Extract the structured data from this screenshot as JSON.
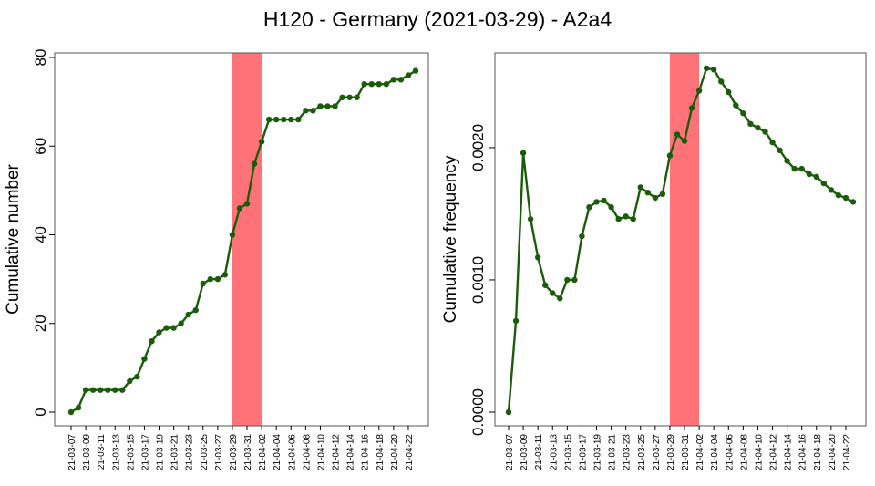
{
  "title": "H120 - Germany (2021-03-29) - A2a4",
  "colors": {
    "line": "#1a5c0a",
    "highlight": "#ff7378",
    "frame": "#555555"
  },
  "chart_data": [
    {
      "type": "line",
      "ylabel": "Cumulative number",
      "ylim": [
        0,
        80
      ],
      "yticks": [
        "0",
        "20",
        "40",
        "60",
        "80"
      ],
      "yticks_values": [
        0,
        20,
        40,
        60,
        80
      ],
      "highlight": {
        "from": "2021-03-29",
        "to": "2021-04-02"
      },
      "xticks": [
        "21-03-07",
        "21-03-09",
        "21-03-11",
        "21-03-13",
        "21-03-15",
        "21-03-17",
        "21-03-19",
        "21-03-21",
        "21-03-23",
        "21-03-25",
        "21-03-27",
        "21-03-29",
        "21-03-31",
        "21-04-02",
        "21-04-04",
        "21-04-06",
        "21-04-08",
        "21-04-10",
        "21-04-12",
        "21-04-14",
        "21-04-16",
        "21-04-18",
        "21-04-20",
        "21-04-22"
      ],
      "x": [
        "2021-03-07",
        "2021-03-08",
        "2021-03-09",
        "2021-03-10",
        "2021-03-11",
        "2021-03-12",
        "2021-03-13",
        "2021-03-14",
        "2021-03-15",
        "2021-03-16",
        "2021-03-17",
        "2021-03-18",
        "2021-03-19",
        "2021-03-20",
        "2021-03-21",
        "2021-03-22",
        "2021-03-23",
        "2021-03-24",
        "2021-03-25",
        "2021-03-26",
        "2021-03-27",
        "2021-03-28",
        "2021-03-29",
        "2021-03-30",
        "2021-03-31",
        "2021-04-01",
        "2021-04-02",
        "2021-04-03",
        "2021-04-04",
        "2021-04-05",
        "2021-04-06",
        "2021-04-07",
        "2021-04-08",
        "2021-04-09",
        "2021-04-10",
        "2021-04-11",
        "2021-04-12",
        "2021-04-13",
        "2021-04-14",
        "2021-04-15",
        "2021-04-16",
        "2021-04-17",
        "2021-04-18",
        "2021-04-19",
        "2021-04-20",
        "2021-04-21",
        "2021-04-22",
        "2021-04-23"
      ],
      "values": [
        0,
        1,
        5,
        5,
        5,
        5,
        5,
        5,
        7,
        8,
        12,
        16,
        18,
        19,
        19,
        20,
        22,
        23,
        29,
        30,
        30,
        31,
        40,
        46,
        47,
        56,
        61,
        66,
        66,
        66,
        66,
        66,
        68,
        68,
        69,
        69,
        69,
        71,
        71,
        71,
        74,
        74,
        74,
        74,
        75,
        75,
        76,
        77
      ]
    },
    {
      "type": "line",
      "ylabel": "Cumulative frequency",
      "ylim": [
        0,
        0.00262
      ],
      "yticks": [
        "0.0000",
        "0.0010",
        "0.0020"
      ],
      "yticks_values": [
        0,
        0.001,
        0.002
      ],
      "highlight": {
        "from": "2021-03-29",
        "to": "2021-04-02"
      },
      "xticks": [
        "21-03-07",
        "21-03-09",
        "21-03-11",
        "21-03-13",
        "21-03-15",
        "21-03-17",
        "21-03-19",
        "21-03-21",
        "21-03-23",
        "21-03-25",
        "21-03-27",
        "21-03-29",
        "21-03-31",
        "21-04-02",
        "21-04-04",
        "21-04-06",
        "21-04-08",
        "21-04-10",
        "21-04-12",
        "21-04-14",
        "21-04-16",
        "21-04-18",
        "21-04-20",
        "21-04-22"
      ],
      "x": [
        "2021-03-07",
        "2021-03-08",
        "2021-03-09",
        "2021-03-10",
        "2021-03-11",
        "2021-03-12",
        "2021-03-13",
        "2021-03-14",
        "2021-03-15",
        "2021-03-16",
        "2021-03-17",
        "2021-03-18",
        "2021-03-19",
        "2021-03-20",
        "2021-03-21",
        "2021-03-22",
        "2021-03-23",
        "2021-03-24",
        "2021-03-25",
        "2021-03-26",
        "2021-03-27",
        "2021-03-28",
        "2021-03-29",
        "2021-03-30",
        "2021-03-31",
        "2021-04-01",
        "2021-04-02",
        "2021-04-03",
        "2021-04-04",
        "2021-04-05",
        "2021-04-06",
        "2021-04-07",
        "2021-04-08",
        "2021-04-09",
        "2021-04-10",
        "2021-04-11",
        "2021-04-12",
        "2021-04-13",
        "2021-04-14",
        "2021-04-15",
        "2021-04-16",
        "2021-04-17",
        "2021-04-18",
        "2021-04-19",
        "2021-04-20",
        "2021-04-21",
        "2021-04-22",
        "2021-04-23"
      ],
      "values": [
        0,
        0.00069,
        0.00196,
        0.00146,
        0.00117,
        0.00096,
        0.0009,
        0.00086,
        0.001,
        0.001,
        0.00133,
        0.00155,
        0.00159,
        0.0016,
        0.00155,
        0.00146,
        0.00148,
        0.00146,
        0.0017,
        0.00166,
        0.00162,
        0.00165,
        0.00194,
        0.0021,
        0.00205,
        0.0023,
        0.00243,
        0.0026,
        0.00259,
        0.0025,
        0.00242,
        0.00232,
        0.00226,
        0.00218,
        0.00215,
        0.00212,
        0.00204,
        0.00198,
        0.0019,
        0.00184,
        0.00184,
        0.0018,
        0.00178,
        0.00173,
        0.00168,
        0.00164,
        0.00162,
        0.00159
      ]
    }
  ]
}
